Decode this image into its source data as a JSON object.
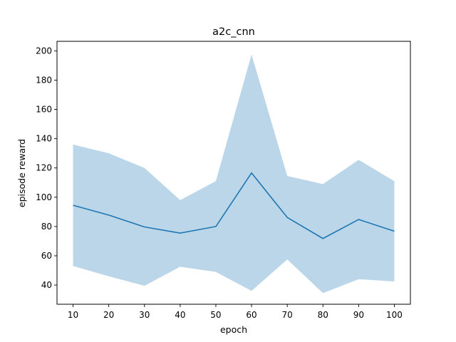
{
  "chart_data": {
    "type": "line",
    "title": "a2c_cnn",
    "xlabel": "epoch",
    "ylabel": "episode reward",
    "x": [
      10,
      20,
      30,
      40,
      50,
      60,
      70,
      80,
      90,
      100
    ],
    "series": [
      {
        "values": [
          94.5,
          87.8,
          79.7,
          75.5,
          80.0,
          116.6,
          86.2,
          71.8,
          84.8,
          76.8
        ],
        "lower": [
          53.0,
          46.0,
          39.5,
          52.5,
          49.0,
          36.0,
          57.5,
          34.5,
          44.0,
          42.5
        ],
        "upper": [
          136.0,
          130.0,
          120.0,
          98.0,
          111.0,
          197.5,
          114.5,
          109.0,
          125.5,
          111.0
        ],
        "color": "#1f77b4",
        "band_color": "#1f77b4"
      }
    ],
    "xticks": [
      "10",
      "20",
      "30",
      "40",
      "50",
      "60",
      "70",
      "80",
      "90",
      "100"
    ],
    "yticks": [
      "40",
      "60",
      "80",
      "100",
      "120",
      "140",
      "160",
      "180",
      "200"
    ],
    "xlim": [
      5.5,
      104.5
    ],
    "ylim": [
      26.9,
      206.5
    ],
    "grid": false,
    "legend": false
  }
}
